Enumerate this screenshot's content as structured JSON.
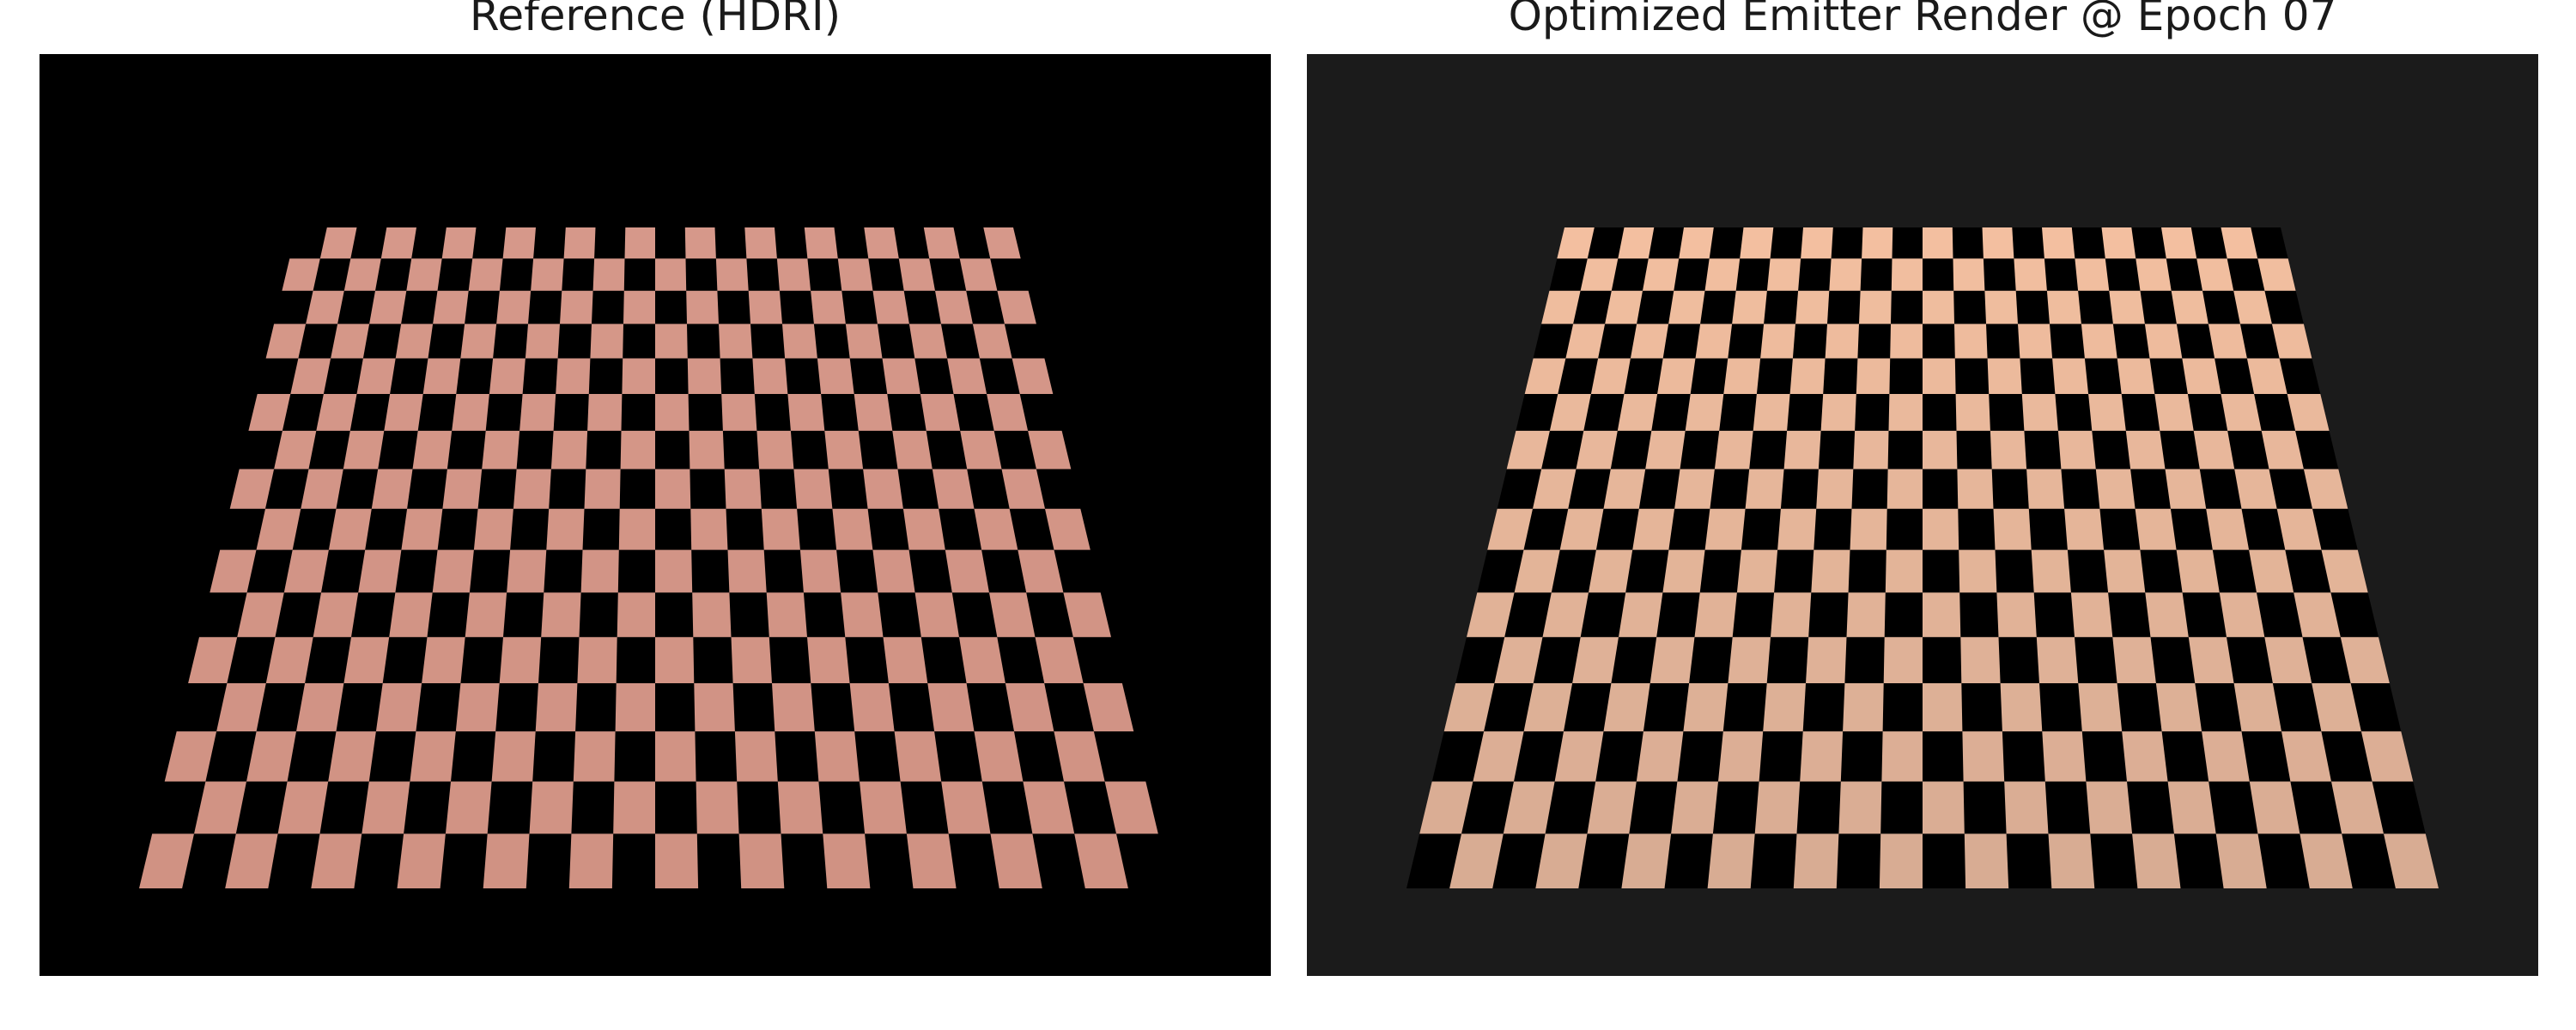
{
  "figure": {
    "panels": [
      {
        "id": "reference",
        "title": "Reference (HDRI)",
        "background_color": "#000000",
        "tile_color_top": "#d6988a",
        "tile_color_bottom": "#d09283",
        "gap_color": "#000000",
        "phase": 1
      },
      {
        "id": "optimized",
        "title": "Optimized Emitter Render @ Epoch 07",
        "background_color": "#1b1b1b",
        "tile_color_top": "#f4c0a0",
        "tile_color_bottom": "#d7ab93",
        "gap_color": "#000000",
        "phase": 0
      }
    ],
    "checkerboard": {
      "rows": 16,
      "cols": 24
    }
  }
}
